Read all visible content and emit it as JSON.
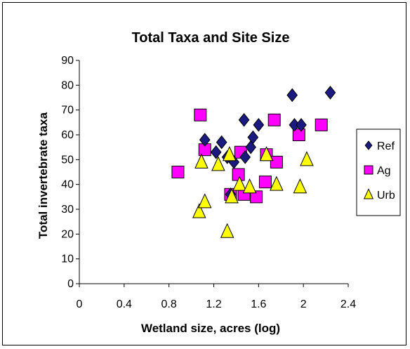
{
  "chart_data": {
    "type": "scatter",
    "title": "Total Taxa and Site Size",
    "xlabel": "Wetland size, acres (log)",
    "ylabel": "Total invertebrate taxa",
    "xlim": [
      0,
      2.4
    ],
    "ylim": [
      0,
      90
    ],
    "x_ticks": [
      "0",
      "0.4",
      "0.8",
      "1.2",
      "1.6",
      "2",
      "2.4"
    ],
    "y_ticks": [
      "0",
      "10",
      "20",
      "30",
      "40",
      "50",
      "60",
      "70",
      "80",
      "90"
    ],
    "grid": false,
    "legend": "right",
    "series": [
      {
        "name": "Ref",
        "marker": "diamond",
        "color": "#1a1a80",
        "points": [
          [
            1.12,
            58
          ],
          [
            1.22,
            53
          ],
          [
            1.27,
            57
          ],
          [
            1.32,
            51
          ],
          [
            1.38,
            49
          ],
          [
            1.47,
            66
          ],
          [
            1.48,
            51
          ],
          [
            1.53,
            55
          ],
          [
            1.55,
            59
          ],
          [
            1.6,
            64
          ],
          [
            1.9,
            76
          ],
          [
            1.92,
            64
          ],
          [
            1.98,
            64
          ],
          [
            2.24,
            77
          ],
          [
            1.35,
            36
          ]
        ]
      },
      {
        "name": "Ag",
        "marker": "square",
        "color": "#ff00ff",
        "points": [
          [
            0.88,
            45
          ],
          [
            1.08,
            68
          ],
          [
            1.12,
            54
          ],
          [
            1.35,
            36
          ],
          [
            1.42,
            44
          ],
          [
            1.44,
            53
          ],
          [
            1.47,
            36
          ],
          [
            1.58,
            35
          ],
          [
            1.66,
            41
          ],
          [
            1.67,
            52
          ],
          [
            1.74,
            66
          ],
          [
            1.76,
            49
          ],
          [
            1.96,
            60
          ],
          [
            2.16,
            64
          ]
        ]
      },
      {
        "name": "Urb",
        "marker": "triangle",
        "color": "#ffff00",
        "points": [
          [
            1.07,
            29
          ],
          [
            1.09,
            49
          ],
          [
            1.12,
            33
          ],
          [
            1.24,
            48
          ],
          [
            1.32,
            21
          ],
          [
            1.34,
            52
          ],
          [
            1.36,
            35
          ],
          [
            1.43,
            40
          ],
          [
            1.52,
            39
          ],
          [
            1.67,
            52
          ],
          [
            1.76,
            40
          ],
          [
            1.97,
            39
          ],
          [
            2.03,
            50
          ]
        ]
      }
    ]
  }
}
